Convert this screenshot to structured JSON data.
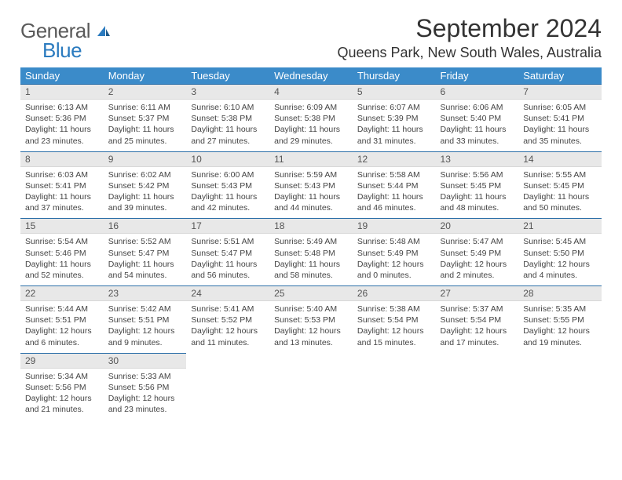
{
  "brand": {
    "line1": "General",
    "line2": "Blue"
  },
  "title": "September 2024",
  "location": "Queens Park, New South Wales, Australia",
  "colors": {
    "header_bg": "#3b8bc9",
    "header_text": "#ffffff",
    "border": "#2b6fa8",
    "daynum_bg": "#e8e8e8",
    "text": "#444444",
    "brand_gray": "#5a5a5a",
    "brand_blue": "#2b7bbf"
  },
  "weekdays": [
    "Sunday",
    "Monday",
    "Tuesday",
    "Wednesday",
    "Thursday",
    "Friday",
    "Saturday"
  ],
  "weeks": [
    [
      {
        "n": "1",
        "sr": "Sunrise: 6:13 AM",
        "ss": "Sunset: 5:36 PM",
        "dl": "Daylight: 11 hours and 23 minutes."
      },
      {
        "n": "2",
        "sr": "Sunrise: 6:11 AM",
        "ss": "Sunset: 5:37 PM",
        "dl": "Daylight: 11 hours and 25 minutes."
      },
      {
        "n": "3",
        "sr": "Sunrise: 6:10 AM",
        "ss": "Sunset: 5:38 PM",
        "dl": "Daylight: 11 hours and 27 minutes."
      },
      {
        "n": "4",
        "sr": "Sunrise: 6:09 AM",
        "ss": "Sunset: 5:38 PM",
        "dl": "Daylight: 11 hours and 29 minutes."
      },
      {
        "n": "5",
        "sr": "Sunrise: 6:07 AM",
        "ss": "Sunset: 5:39 PM",
        "dl": "Daylight: 11 hours and 31 minutes."
      },
      {
        "n": "6",
        "sr": "Sunrise: 6:06 AM",
        "ss": "Sunset: 5:40 PM",
        "dl": "Daylight: 11 hours and 33 minutes."
      },
      {
        "n": "7",
        "sr": "Sunrise: 6:05 AM",
        "ss": "Sunset: 5:41 PM",
        "dl": "Daylight: 11 hours and 35 minutes."
      }
    ],
    [
      {
        "n": "8",
        "sr": "Sunrise: 6:03 AM",
        "ss": "Sunset: 5:41 PM",
        "dl": "Daylight: 11 hours and 37 minutes."
      },
      {
        "n": "9",
        "sr": "Sunrise: 6:02 AM",
        "ss": "Sunset: 5:42 PM",
        "dl": "Daylight: 11 hours and 39 minutes."
      },
      {
        "n": "10",
        "sr": "Sunrise: 6:00 AM",
        "ss": "Sunset: 5:43 PM",
        "dl": "Daylight: 11 hours and 42 minutes."
      },
      {
        "n": "11",
        "sr": "Sunrise: 5:59 AM",
        "ss": "Sunset: 5:43 PM",
        "dl": "Daylight: 11 hours and 44 minutes."
      },
      {
        "n": "12",
        "sr": "Sunrise: 5:58 AM",
        "ss": "Sunset: 5:44 PM",
        "dl": "Daylight: 11 hours and 46 minutes."
      },
      {
        "n": "13",
        "sr": "Sunrise: 5:56 AM",
        "ss": "Sunset: 5:45 PM",
        "dl": "Daylight: 11 hours and 48 minutes."
      },
      {
        "n": "14",
        "sr": "Sunrise: 5:55 AM",
        "ss": "Sunset: 5:45 PM",
        "dl": "Daylight: 11 hours and 50 minutes."
      }
    ],
    [
      {
        "n": "15",
        "sr": "Sunrise: 5:54 AM",
        "ss": "Sunset: 5:46 PM",
        "dl": "Daylight: 11 hours and 52 minutes."
      },
      {
        "n": "16",
        "sr": "Sunrise: 5:52 AM",
        "ss": "Sunset: 5:47 PM",
        "dl": "Daylight: 11 hours and 54 minutes."
      },
      {
        "n": "17",
        "sr": "Sunrise: 5:51 AM",
        "ss": "Sunset: 5:47 PM",
        "dl": "Daylight: 11 hours and 56 minutes."
      },
      {
        "n": "18",
        "sr": "Sunrise: 5:49 AM",
        "ss": "Sunset: 5:48 PM",
        "dl": "Daylight: 11 hours and 58 minutes."
      },
      {
        "n": "19",
        "sr": "Sunrise: 5:48 AM",
        "ss": "Sunset: 5:49 PM",
        "dl": "Daylight: 12 hours and 0 minutes."
      },
      {
        "n": "20",
        "sr": "Sunrise: 5:47 AM",
        "ss": "Sunset: 5:49 PM",
        "dl": "Daylight: 12 hours and 2 minutes."
      },
      {
        "n": "21",
        "sr": "Sunrise: 5:45 AM",
        "ss": "Sunset: 5:50 PM",
        "dl": "Daylight: 12 hours and 4 minutes."
      }
    ],
    [
      {
        "n": "22",
        "sr": "Sunrise: 5:44 AM",
        "ss": "Sunset: 5:51 PM",
        "dl": "Daylight: 12 hours and 6 minutes."
      },
      {
        "n": "23",
        "sr": "Sunrise: 5:42 AM",
        "ss": "Sunset: 5:51 PM",
        "dl": "Daylight: 12 hours and 9 minutes."
      },
      {
        "n": "24",
        "sr": "Sunrise: 5:41 AM",
        "ss": "Sunset: 5:52 PM",
        "dl": "Daylight: 12 hours and 11 minutes."
      },
      {
        "n": "25",
        "sr": "Sunrise: 5:40 AM",
        "ss": "Sunset: 5:53 PM",
        "dl": "Daylight: 12 hours and 13 minutes."
      },
      {
        "n": "26",
        "sr": "Sunrise: 5:38 AM",
        "ss": "Sunset: 5:54 PM",
        "dl": "Daylight: 12 hours and 15 minutes."
      },
      {
        "n": "27",
        "sr": "Sunrise: 5:37 AM",
        "ss": "Sunset: 5:54 PM",
        "dl": "Daylight: 12 hours and 17 minutes."
      },
      {
        "n": "28",
        "sr": "Sunrise: 5:35 AM",
        "ss": "Sunset: 5:55 PM",
        "dl": "Daylight: 12 hours and 19 minutes."
      }
    ],
    [
      {
        "n": "29",
        "sr": "Sunrise: 5:34 AM",
        "ss": "Sunset: 5:56 PM",
        "dl": "Daylight: 12 hours and 21 minutes."
      },
      {
        "n": "30",
        "sr": "Sunrise: 5:33 AM",
        "ss": "Sunset: 5:56 PM",
        "dl": "Daylight: 12 hours and 23 minutes."
      },
      null,
      null,
      null,
      null,
      null
    ]
  ]
}
